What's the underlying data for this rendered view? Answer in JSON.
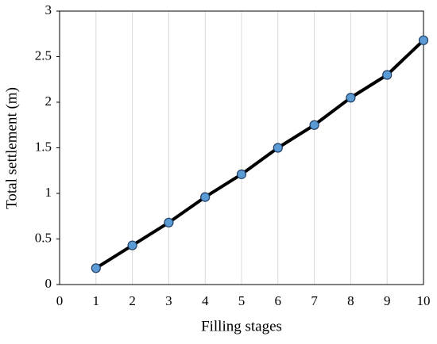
{
  "chart_data": {
    "type": "line",
    "x_label": "Filling stages",
    "y_label": "Total settlement (m)",
    "x": [
      1,
      2,
      3,
      4,
      5,
      6,
      7,
      8,
      9,
      10
    ],
    "values": [
      0.18,
      0.43,
      0.68,
      0.96,
      1.21,
      1.5,
      1.75,
      2.05,
      2.3,
      2.68
    ],
    "color": "#000000",
    "marker_color": "#5b9bd5",
    "xlim": [
      0,
      10
    ],
    "xticks": [
      0,
      1,
      2,
      3,
      4,
      5,
      6,
      7,
      8,
      9,
      10
    ],
    "ylim": [
      0,
      3
    ],
    "yticks": [
      0,
      0.5,
      1,
      1.5,
      2,
      2.5,
      3
    ],
    "grid": "x"
  }
}
